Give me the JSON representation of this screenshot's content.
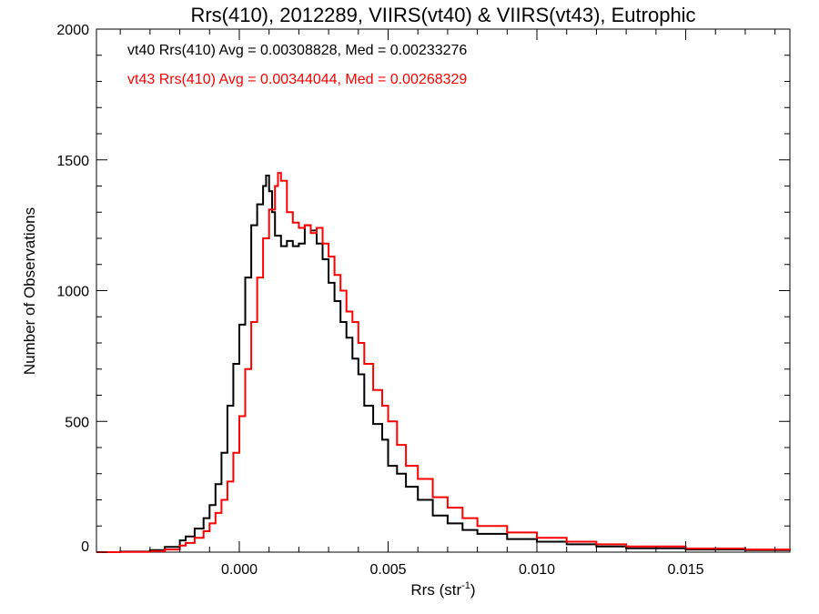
{
  "chart_data": {
    "type": "line",
    "title": "Rrs(410), 2012289, VIIRS(vt40) & VIIRS(vt43), Eutrophic",
    "xlabel_main": "Rrs (str",
    "xlabel_sup": "-1",
    "xlabel_end": ")",
    "ylabel": "Number of Observations",
    "xlim": [
      -0.0048,
      0.0185
    ],
    "ylim": [
      0,
      2000
    ],
    "xticks": [
      0.0,
      0.005,
      0.01,
      0.015
    ],
    "xtick_labels": [
      "0.000",
      "0.005",
      "0.010",
      "0.015"
    ],
    "yticks": [
      0,
      500,
      1000,
      1500,
      2000
    ],
    "ytick_labels": [
      "0",
      "500",
      "1000",
      "1500",
      "2000"
    ],
    "legend": [
      {
        "text": "vt40 Rrs(410) Avg = 0.00308828, Med = 0.00233276",
        "color": "#000000"
      },
      {
        "text": "vt43 Rrs(410) Avg = 0.00344044, Med = 0.00268329",
        "color": "#ff0000"
      }
    ],
    "series": [
      {
        "color": "#000000",
        "x": [
          -0.0048,
          -0.004,
          -0.003,
          -0.0025,
          -0.002,
          -0.0018,
          -0.0015,
          -0.0012,
          -0.001,
          -0.0008,
          -0.0006,
          -0.0004,
          -0.0002,
          0.0,
          0.0002,
          0.0004,
          0.0006,
          0.0008,
          0.0009,
          0.001,
          0.0011,
          0.0012,
          0.0014,
          0.0016,
          0.0018,
          0.002,
          0.0022,
          0.0024,
          0.0026,
          0.0028,
          0.003,
          0.0032,
          0.0034,
          0.0036,
          0.0038,
          0.004,
          0.0042,
          0.0045,
          0.0048,
          0.005,
          0.0053,
          0.0056,
          0.006,
          0.0065,
          0.007,
          0.0075,
          0.008,
          0.009,
          0.01,
          0.011,
          0.012,
          0.013,
          0.015,
          0.017,
          0.0185
        ],
        "y": [
          0,
          2,
          8,
          20,
          45,
          60,
          90,
          130,
          180,
          260,
          380,
          560,
          720,
          870,
          1050,
          1250,
          1330,
          1400,
          1440,
          1380,
          1300,
          1210,
          1170,
          1190,
          1170,
          1180,
          1250,
          1230,
          1180,
          1120,
          1030,
          960,
          880,
          820,
          740,
          680,
          560,
          490,
          430,
          330,
          300,
          250,
          200,
          140,
          110,
          85,
          70,
          50,
          40,
          30,
          22,
          15,
          10,
          8,
          6
        ]
      },
      {
        "color": "#ff0000",
        "x": [
          -0.0048,
          -0.004,
          -0.003,
          -0.0025,
          -0.002,
          -0.0018,
          -0.0015,
          -0.0012,
          -0.001,
          -0.0008,
          -0.0006,
          -0.0004,
          -0.0002,
          0.0,
          0.0002,
          0.0004,
          0.0006,
          0.0008,
          0.001,
          0.0012,
          0.0013,
          0.0014,
          0.0016,
          0.0018,
          0.002,
          0.0022,
          0.0024,
          0.0026,
          0.0028,
          0.003,
          0.0032,
          0.0034,
          0.0036,
          0.0038,
          0.004,
          0.0042,
          0.0045,
          0.0048,
          0.005,
          0.0053,
          0.0056,
          0.006,
          0.0065,
          0.007,
          0.0075,
          0.008,
          0.009,
          0.01,
          0.011,
          0.012,
          0.013,
          0.015,
          0.017,
          0.0185
        ],
        "y": [
          0,
          1,
          4,
          10,
          25,
          35,
          55,
          80,
          110,
          150,
          200,
          270,
          380,
          520,
          700,
          880,
          1050,
          1200,
          1310,
          1400,
          1450,
          1420,
          1300,
          1260,
          1240,
          1250,
          1220,
          1240,
          1180,
          1130,
          1060,
          1000,
          920,
          880,
          800,
          720,
          620,
          560,
          500,
          410,
          330,
          280,
          210,
          170,
          130,
          100,
          75,
          55,
          40,
          30,
          22,
          14,
          10,
          7
        ]
      }
    ]
  }
}
